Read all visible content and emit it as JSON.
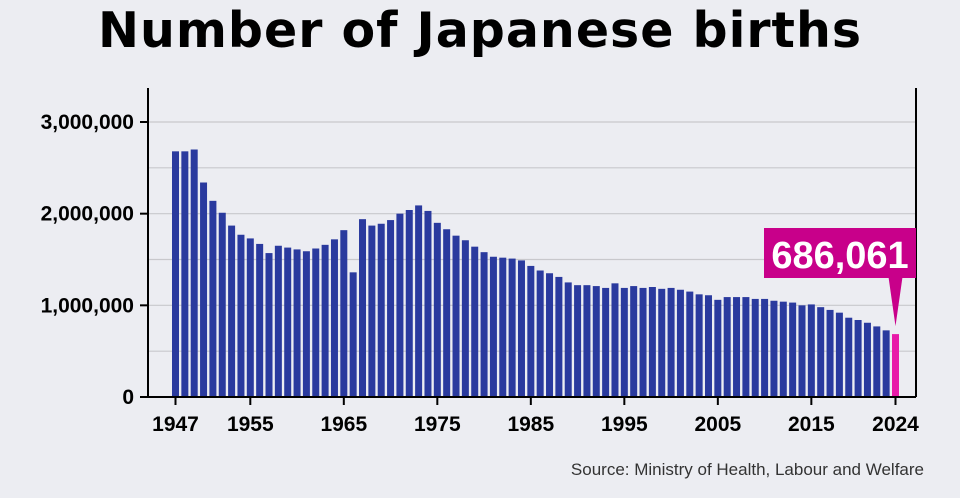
{
  "title": "Number of Japanese births",
  "source": "Source: Ministry of Health, Labour and Welfare",
  "colors": {
    "bar": "#2a3a9e",
    "highlight": "#e81aa8",
    "callout": "#c8008a",
    "grid": "#c8c8cc",
    "background": "#ecedf2"
  },
  "chart_data": {
    "type": "bar",
    "title": "Number of Japanese births",
    "xlabel": "",
    "ylabel": "",
    "ylim": [
      0,
      3000000
    ],
    "yticks": [
      0,
      1000000,
      2000000,
      3000000
    ],
    "ytick_labels": [
      "0",
      "1,000,000",
      "2,000,000",
      "3,000,000"
    ],
    "xtick_labels": [
      "1947",
      "1955",
      "1965",
      "1975",
      "1985",
      "1995",
      "2005",
      "2015",
      "2024"
    ],
    "grid": true,
    "highlight": {
      "x": 2024,
      "value": 686061,
      "label": "686,061"
    },
    "x": [
      1947,
      1948,
      1949,
      1950,
      1951,
      1952,
      1953,
      1954,
      1955,
      1956,
      1957,
      1958,
      1959,
      1960,
      1961,
      1962,
      1963,
      1964,
      1965,
      1966,
      1967,
      1968,
      1969,
      1970,
      1971,
      1972,
      1973,
      1974,
      1975,
      1976,
      1977,
      1978,
      1979,
      1980,
      1981,
      1982,
      1983,
      1984,
      1985,
      1986,
      1987,
      1988,
      1989,
      1990,
      1991,
      1992,
      1993,
      1994,
      1995,
      1996,
      1997,
      1998,
      1999,
      2000,
      2001,
      2002,
      2003,
      2004,
      2005,
      2006,
      2007,
      2008,
      2009,
      2010,
      2011,
      2012,
      2013,
      2014,
      2015,
      2016,
      2017,
      2018,
      2019,
      2020,
      2021,
      2022,
      2023,
      2024
    ],
    "values": [
      2680000,
      2680000,
      2700000,
      2340000,
      2140000,
      2010000,
      1870000,
      1770000,
      1730000,
      1670000,
      1570000,
      1650000,
      1630000,
      1610000,
      1590000,
      1620000,
      1660000,
      1720000,
      1820000,
      1360000,
      1940000,
      1870000,
      1890000,
      1930000,
      2000000,
      2040000,
      2090000,
      2030000,
      1900000,
      1830000,
      1760000,
      1710000,
      1640000,
      1580000,
      1530000,
      1520000,
      1510000,
      1490000,
      1430000,
      1380000,
      1350000,
      1310000,
      1250000,
      1220000,
      1220000,
      1210000,
      1190000,
      1240000,
      1190000,
      1210000,
      1190000,
      1200000,
      1180000,
      1190000,
      1170000,
      1150000,
      1120000,
      1110000,
      1060000,
      1090000,
      1090000,
      1090000,
      1070000,
      1070000,
      1050000,
      1040000,
      1030000,
      1000000,
      1010000,
      980000,
      950000,
      920000,
      865000,
      840000,
      810000,
      770000,
      727000,
      686061
    ]
  }
}
